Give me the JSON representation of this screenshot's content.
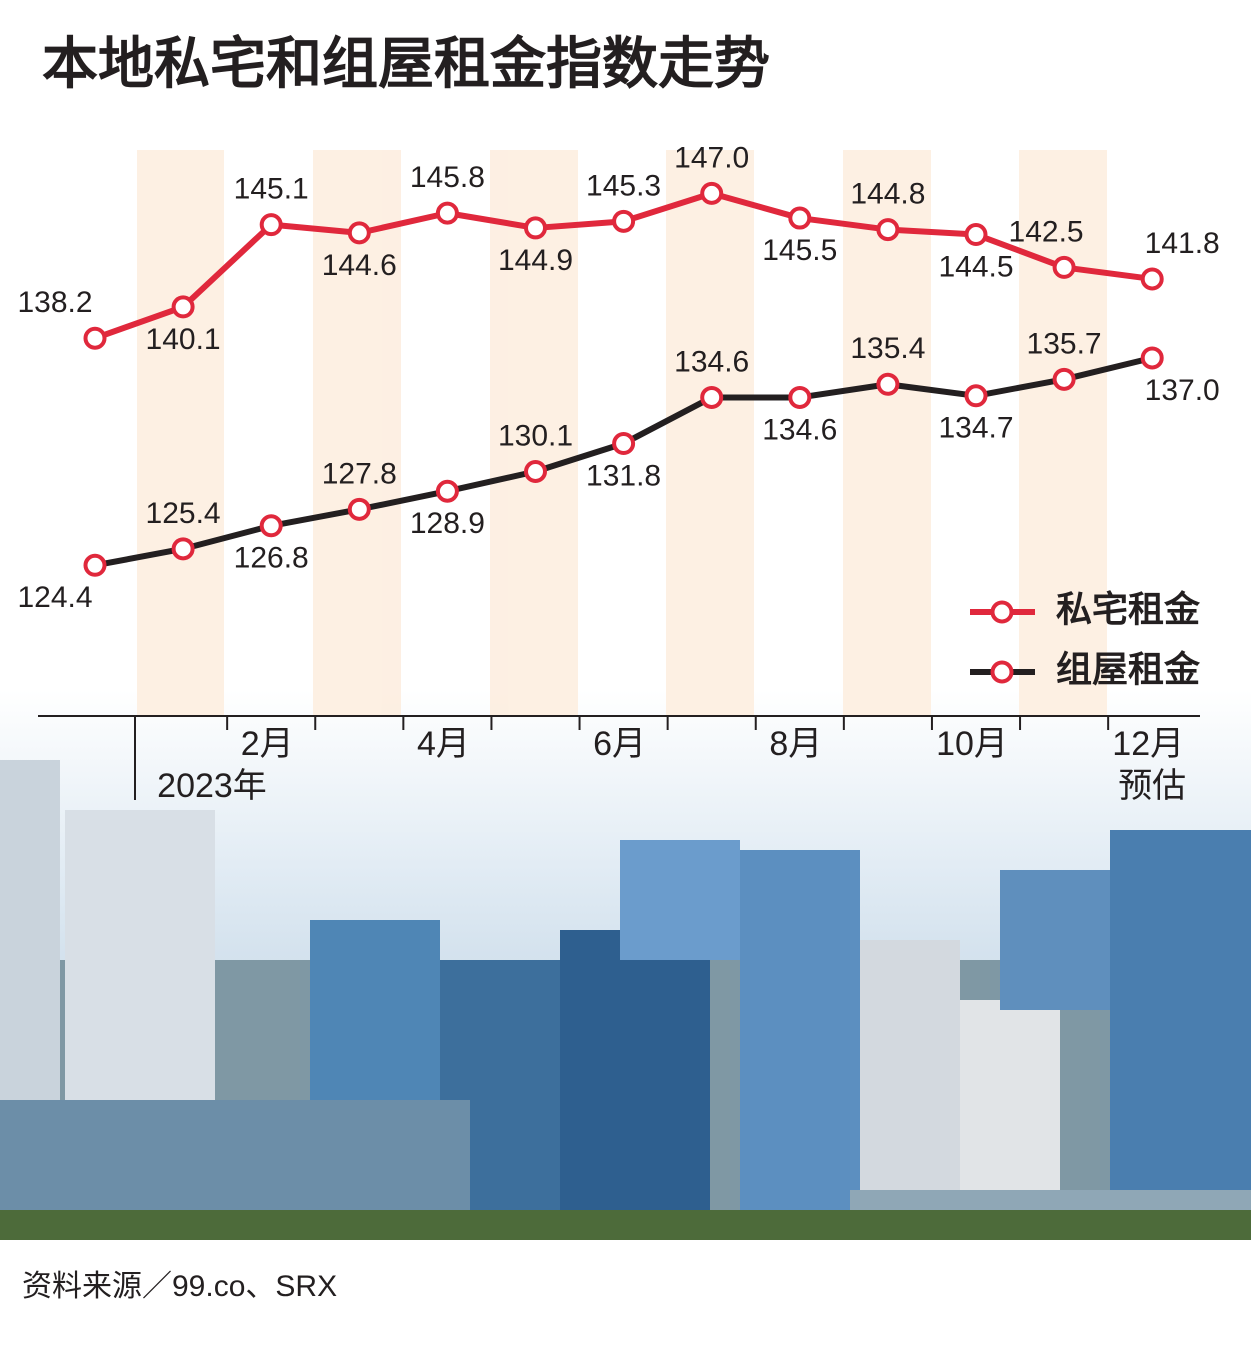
{
  "chart_data": {
    "type": "line",
    "title": "本地私宅和组屋租金指数走势",
    "categories": [
      null,
      null,
      "2月",
      null,
      "4月",
      null,
      "6月",
      null,
      "8月",
      null,
      "10月",
      null,
      "12月"
    ],
    "annotations": [
      "2023年",
      "预估"
    ],
    "source": "资料来源／99.co、SRX",
    "ylim": [
      115,
      150
    ],
    "legend": "right",
    "series": [
      {
        "name": "私宅租金",
        "color": "#e0283c",
        "values": [
          138.2,
          140.1,
          145.1,
          144.6,
          145.8,
          144.9,
          145.3,
          147.0,
          145.5,
          144.8,
          144.5,
          142.5,
          141.8
        ],
        "value_labels": [
          "138.2",
          "140.1",
          "145.1",
          "144.6",
          "145.8",
          "144.9",
          "145.3",
          "147.0",
          "145.5",
          "144.8",
          "144.5",
          "142.5",
          "141.8"
        ]
      },
      {
        "name": "组屋租金",
        "color": "#231f20",
        "values": [
          124.4,
          125.4,
          126.8,
          127.8,
          128.9,
          130.1,
          131.8,
          134.6,
          134.6,
          135.4,
          134.7,
          135.7,
          137.0
        ],
        "value_labels": [
          "124.4",
          "125.4",
          "126.8",
          "127.8",
          "128.9",
          "130.1",
          "131.8",
          "134.6",
          "134.6",
          "135.4",
          "134.7",
          "135.7",
          "137.0"
        ]
      }
    ]
  }
}
